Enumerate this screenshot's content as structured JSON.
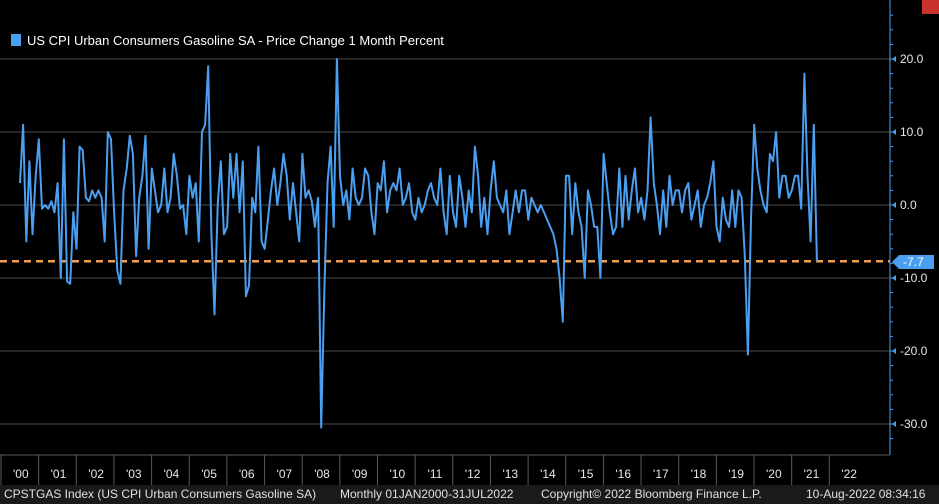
{
  "colors": {
    "background": "#000000",
    "series": "#4a9ff0",
    "grid": "#4a4a4a",
    "reference_line": "#f0a050",
    "accent_corner": "#c8342c",
    "footer_bg": "#1a1a1a"
  },
  "chart_data": {
    "type": "line",
    "title": "",
    "legend": "US CPI Urban Consumers Gasoline SA - Price Change 1 Month Percent",
    "ylim": [
      -33,
      28
    ],
    "y_ticks": [
      20,
      10,
      0,
      -10,
      -20,
      -30
    ],
    "y_tick_labels": [
      "20.0",
      "10.0",
      "0.0",
      "-10.0",
      "-20.0",
      "-30.0"
    ],
    "x_start": 2000.0,
    "x_end": 2022.6,
    "x_ticks": [
      2000,
      2001,
      2002,
      2003,
      2004,
      2005,
      2006,
      2007,
      2008,
      2009,
      2010,
      2011,
      2012,
      2013,
      2014,
      2015,
      2016,
      2017,
      2018,
      2019,
      2020,
      2021,
      2022
    ],
    "x_tick_labels": [
      "'00",
      "'01",
      "'02",
      "'03",
      "'04",
      "'05",
      "'06",
      "'07",
      "'08",
      "'09",
      "'10",
      "'11",
      "'12",
      "'13",
      "'14",
      "'15",
      "'16",
      "'17",
      "'18",
      "'19",
      "'20",
      "'21",
      "'22"
    ],
    "reference_value": -7.7,
    "last_value_label": "-7.7",
    "series": [
      {
        "name": "US CPI Urban Consumers Gasoline SA - Price Change 1 Month Percent",
        "start": 2000.0,
        "step": 0.0833333,
        "values": [
          3.0,
          11.0,
          -5.0,
          6.0,
          -4.0,
          4.0,
          9.0,
          -0.5,
          0.0,
          -0.5,
          0.5,
          -1.0,
          3.0,
          -10.0,
          9.0,
          -10.5,
          -10.8,
          -1.0,
          -6.0,
          8.0,
          7.5,
          1.0,
          0.5,
          2.0,
          1.0,
          2.0,
          1.0,
          -5.0,
          10.0,
          9.0,
          -1.0,
          -9.0,
          -10.8,
          2.0,
          5.0,
          9.5,
          7.0,
          -7.0,
          1.0,
          4.0,
          9.5,
          -6.0,
          5.0,
          2.0,
          -1.0,
          0.0,
          5.0,
          -1.0,
          1.0,
          7.0,
          4.0,
          -0.5,
          0.0,
          -4.0,
          4.0,
          1.0,
          3.0,
          -5.0,
          10.0,
          11.0,
          19.0,
          -4.0,
          -15.0,
          0.0,
          6.0,
          -4.0,
          -3.0,
          7.0,
          1.0,
          7.0,
          -1.0,
          6.0,
          -12.5,
          -11.0,
          1.0,
          -1.0,
          8.0,
          -5.0,
          -6.0,
          -2.0,
          2.0,
          5.0,
          0.0,
          3.0,
          7.0,
          4.0,
          -2.0,
          3.0,
          -1.0,
          -5.0,
          7.0,
          1.0,
          2.0,
          0.5,
          -3.0,
          1.0,
          -30.5,
          -12.0,
          3.0,
          8.0,
          -3.0,
          20.0,
          4.0,
          0.0,
          2.0,
          -2.0,
          5.0,
          1.0,
          0.0,
          1.0,
          5.0,
          4.0,
          -1.0,
          -4.0,
          3.0,
          2.0,
          6.0,
          -1.0,
          2.0,
          3.0,
          2.0,
          5.0,
          0.0,
          1.0,
          3.0,
          -1.0,
          -2.0,
          1.0,
          -1.0,
          0.0,
          2.0,
          3.0,
          1.0,
          0.0,
          5.0,
          -1.0,
          -4.0,
          4.0,
          -1.0,
          -3.0,
          4.0,
          1.0,
          -3.0,
          2.0,
          -1.0,
          8.0,
          4.0,
          -3.0,
          1.0,
          -4.0,
          2.0,
          6.0,
          1.0,
          0.0,
          -1.0,
          2.0,
          -4.0,
          -1.0,
          2.0,
          -1.0,
          2.0,
          2.0,
          -2.0,
          1.0,
          0.0,
          -1.0,
          0.0,
          -1.0,
          -2.0,
          -3.0,
          -4.0,
          -6.0,
          -10.0,
          -16.0,
          4.0,
          4.0,
          -4.0,
          3.0,
          -1.0,
          -3.0,
          -10.0,
          2.0,
          0.0,
          -3.0,
          -3.0,
          -10.0,
          7.0,
          3.0,
          -1.0,
          -4.0,
          -3.0,
          5.0,
          -3.0,
          4.0,
          -2.0,
          2.0,
          5.0,
          -1.0,
          1.0,
          -2.0,
          2.0,
          12.0,
          3.0,
          0.0,
          -4.0,
          2.0,
          -3.0,
          4.0,
          0.0,
          2.0,
          2.0,
          -1.0,
          2.0,
          3.0,
          -2.0,
          0.0,
          2.0,
          -3.0,
          0.0,
          1.0,
          3.0,
          6.0,
          -3.0,
          -5.0,
          1.0,
          -2.0,
          -3.0,
          2.0,
          -3.0,
          2.0,
          1.0,
          -7.0,
          -20.5,
          -2.0,
          11.0,
          5.0,
          2.0,
          0.0,
          -1.0,
          7.0,
          6.0,
          10.0,
          1.0,
          4.0,
          4.0,
          1.0,
          2.0,
          4.0,
          4.0,
          -0.5,
          18.0,
          4.0,
          -5.0,
          11.0,
          -7.7
        ]
      }
    ]
  },
  "footer": {
    "ticker": "CPSTGAS Index (US CPI Urban Consumers Gasoline SA)",
    "period": "Monthly 01JAN2000-31JUL2022",
    "copyright": "Copyright© 2022 Bloomberg Finance L.P.",
    "timestamp": "10-Aug-2022 08:34:16"
  }
}
